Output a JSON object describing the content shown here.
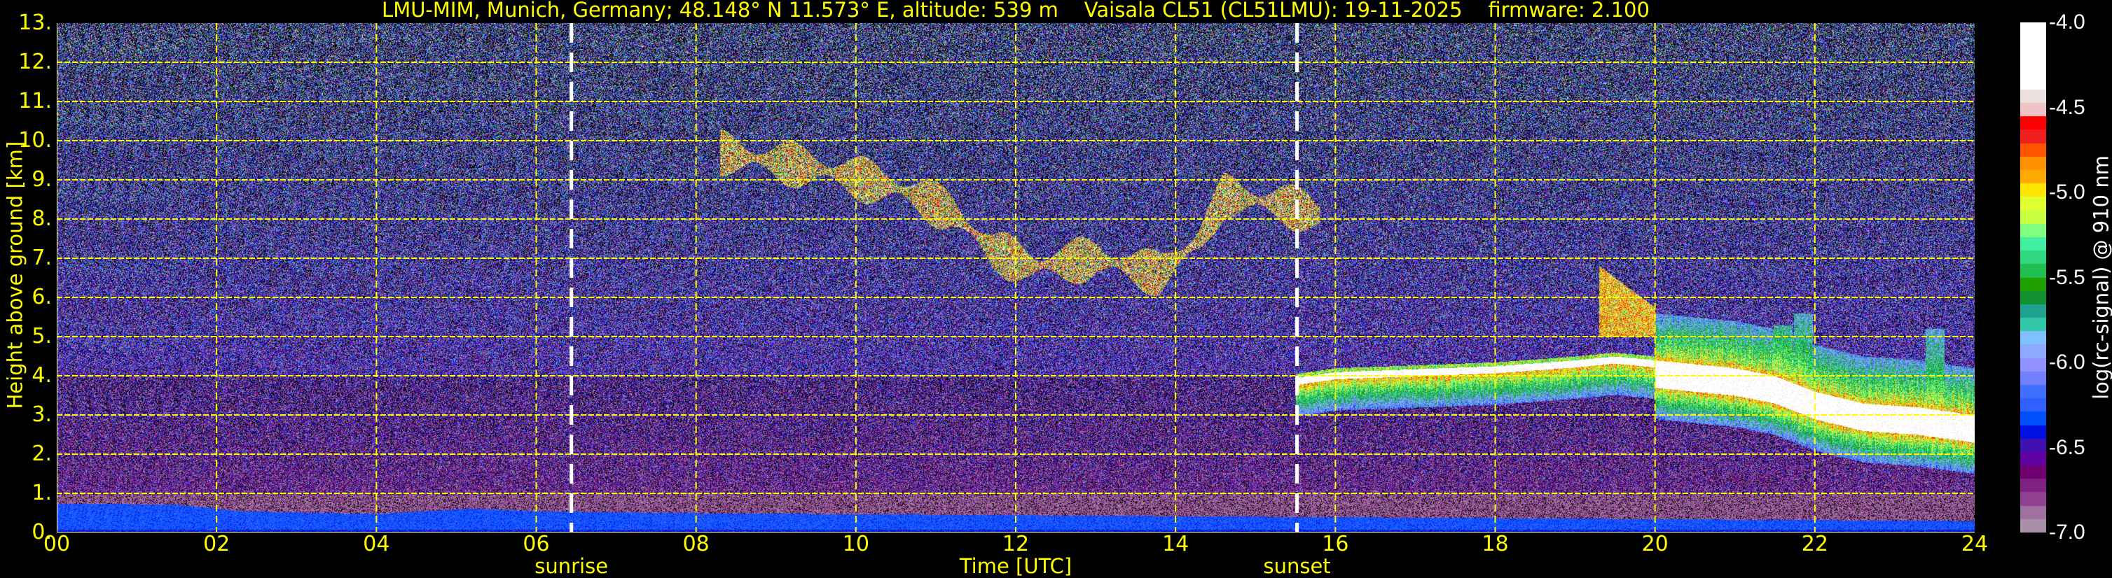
{
  "chart_data": {
    "type": "heatmap",
    "title": "LMU-MIM, Munich, Germany; 48.148° N 11.573° E, altitude: 539 m    Vaisala CL51 (CL51LMU): 19-11-2025    firmware: 2.100",
    "xlabel": "Time [UTC]",
    "ylabel": "Height above ground [km]",
    "xlim": [
      0,
      24
    ],
    "ylim": [
      0,
      13
    ],
    "x_ticks": [
      "00",
      "02",
      "04",
      "06",
      "08",
      "10",
      "12",
      "14",
      "16",
      "18",
      "20",
      "22",
      "24"
    ],
    "x_tick_values": [
      0,
      2,
      4,
      6,
      8,
      10,
      12,
      14,
      16,
      18,
      20,
      22,
      24
    ],
    "y_ticks": [
      "0.",
      "1.",
      "2.",
      "3.",
      "4.",
      "5.",
      "6.",
      "7.",
      "8.",
      "9.",
      "10.",
      "11.",
      "12.",
      "13."
    ],
    "y_tick_values": [
      0,
      1,
      2,
      3,
      4,
      5,
      6,
      7,
      8,
      9,
      10,
      11,
      12,
      13
    ],
    "grid": true,
    "markers": [
      {
        "label": "sunrise",
        "time": 6.44
      },
      {
        "label": "sunset",
        "time": 15.52
      }
    ],
    "colorbar": {
      "label": "log(rc-signal) @ 910 nm",
      "range": [
        -7.0,
        -4.0
      ],
      "ticks": [
        "-4.0",
        "-4.5",
        "-5.0",
        "-5.5",
        "-6.0",
        "-6.5",
        "-7.0"
      ],
      "tick_values": [
        -4.0,
        -4.5,
        -5.0,
        -5.5,
        -6.0,
        -6.5,
        -7.0
      ],
      "colors_low_to_high": [
        "#a890a8",
        "#a070a0",
        "#904090",
        "#802080",
        "#700070",
        "#6000a0",
        "#4010b0",
        "#0010e0",
        "#0050ff",
        "#3060ff",
        "#4070ff",
        "#7080ff",
        "#9090ff",
        "#8caaff",
        "#80c0ff",
        "#30c8a8",
        "#20a090",
        "#109030",
        "#20a000",
        "#20c050",
        "#30d880",
        "#40f0a0",
        "#80ff80",
        "#c8ff40",
        "#e0ff30",
        "#ffe600",
        "#ffaa00",
        "#ff9000",
        "#ff5500",
        "#f02020",
        "#ff0000",
        "#f0c4c4",
        "#ede0e0",
        "#ffffff",
        "#ffffff",
        "#ffffff",
        "#ffffff",
        "#ffffff"
      ]
    },
    "features": [
      {
        "kind": "boundary layer",
        "time": [
          0,
          24
        ],
        "top_km": [
          0.45,
          0.8
        ]
      },
      {
        "kind": "cirrus",
        "time": [
          8.3,
          15.8
        ],
        "height_km": [
          6.2,
          9.9
        ]
      },
      {
        "kind": "low cloud layer",
        "time": [
          15.5,
          24
        ],
        "height_km": [
          2.6,
          4.5
        ]
      },
      {
        "kind": "convective cell",
        "time": [
          19.3,
          20.0
        ],
        "height_km": [
          5.0,
          7.2
        ]
      }
    ]
  },
  "colors": {
    "text": "#ffff00",
    "grid": "#ffff00",
    "background": "#000000",
    "marker_line": "#ffffff",
    "colorbar_text": "#ffffff"
  }
}
